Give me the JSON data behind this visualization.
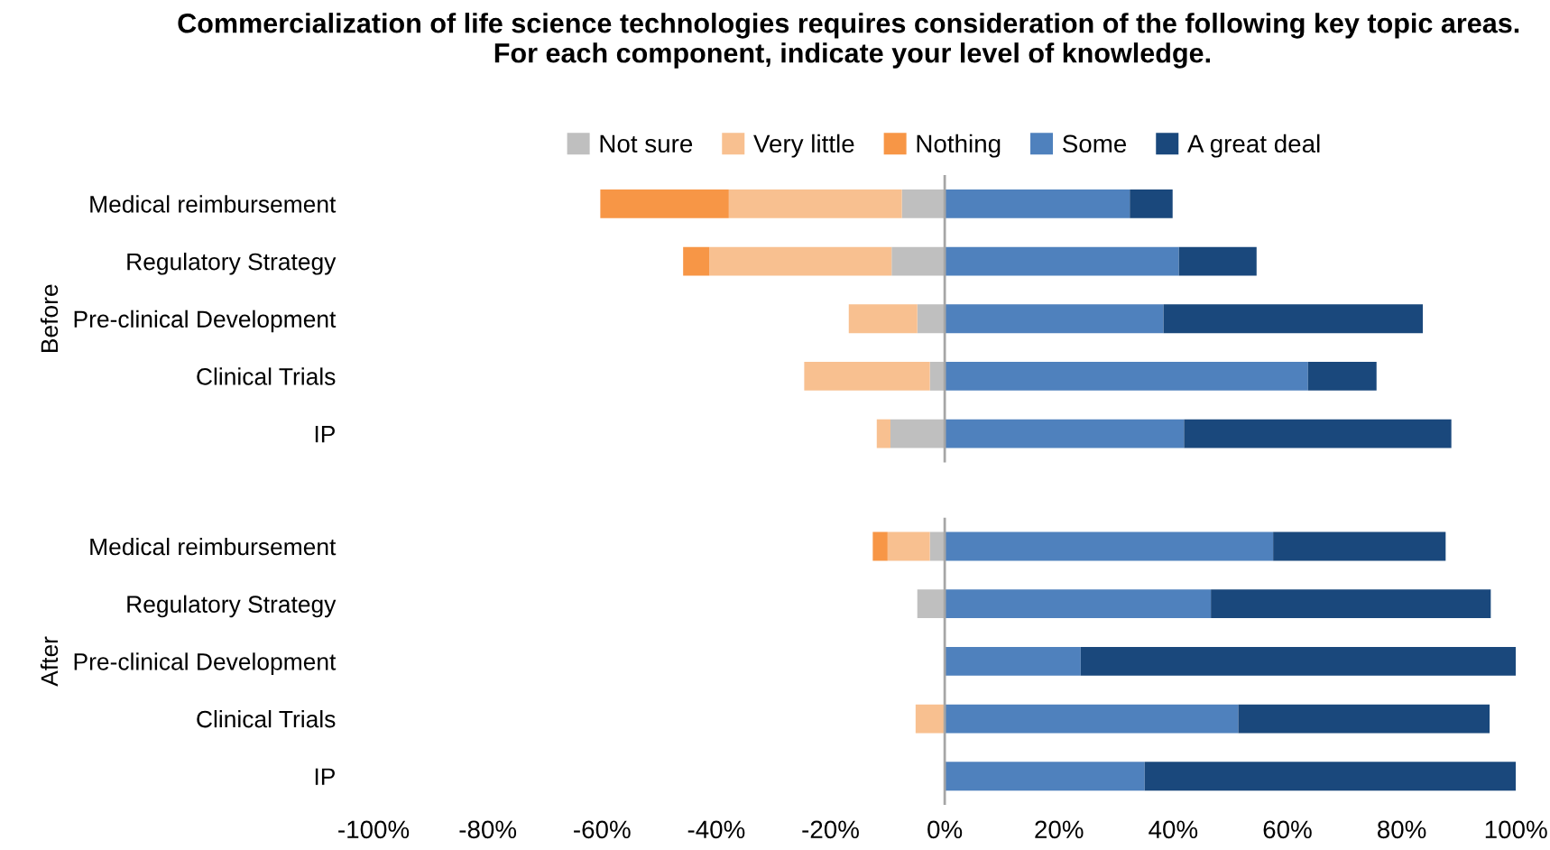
{
  "chart_data": [
    {
      "type": "bar",
      "orientation": "horizontal",
      "stacked": true,
      "title": "Commercialization of life science technologies requires consideration of the following key topic areas.  For each component, indicate your level of knowledge.",
      "ylabel": "Before",
      "categories": [
        "Medical reimbursement",
        "Regulatory Strategy",
        "Pre-clinical Development",
        "Clinical Trials",
        "IP"
      ],
      "legend": "top",
      "grid": false,
      "tick_labels": "y",
      "xlim": [
        -1.0,
        1.0
      ],
      "ref_lines": [
        {
          "axis": "x",
          "value": 0,
          "color": "#a6a6a6"
        }
      ],
      "series": [
        {
          "name": "Not sure",
          "color": "#bfbfbf",
          "values": [
            -0.075,
            -0.093,
            -0.048,
            -0.026,
            -0.095
          ]
        },
        {
          "name": "Very little",
          "color": "#f8c090",
          "values": [
            -0.303,
            -0.319,
            -0.12,
            -0.22,
            -0.024
          ]
        },
        {
          "name": "Nothing",
          "color": "#f79646",
          "values": [
            -0.225,
            -0.046,
            null,
            null,
            null
          ]
        },
        {
          "name": "Some",
          "color": "#4f81bd",
          "values": [
            0.324,
            0.41,
            0.383,
            0.636,
            0.419
          ]
        },
        {
          "name": "A great deal",
          "color": "#1a487c",
          "values": [
            0.075,
            0.136,
            0.454,
            0.12,
            0.468
          ]
        }
      ]
    },
    {
      "type": "bar",
      "orientation": "horizontal",
      "stacked": true,
      "ylabel": "After",
      "categories": [
        "Medical reimbursement",
        "Regulatory Strategy",
        "Pre-clinical Development",
        "Clinical Trials",
        "IP"
      ],
      "legend": false,
      "grid": false,
      "xlim": [
        -1.0,
        1.0
      ],
      "ref_lines": [
        {
          "axis": "x",
          "value": 0,
          "color": "#a6a6a6"
        }
      ],
      "xticks": [
        {
          "value": -1.0,
          "label": "-100%"
        },
        {
          "value": -0.8,
          "label": "-80%"
        },
        {
          "value": -0.6,
          "label": "-60%"
        },
        {
          "value": -0.4,
          "label": "-40%"
        },
        {
          "value": -0.2,
          "label": "-20%"
        },
        {
          "value": 0,
          "label": "0%"
        },
        {
          "value": 0.2,
          "label": "20%"
        },
        {
          "value": 0.4,
          "label": "40%"
        },
        {
          "value": 0.6,
          "label": "60%"
        },
        {
          "value": 0.8,
          "label": "80%"
        },
        {
          "value": 1.0,
          "label": "100%"
        }
      ],
      "series": [
        {
          "color": "#bfbfbf",
          "values": [
            -0.026,
            -0.048,
            null,
            null,
            null
          ]
        },
        {
          "color": "#f8c090",
          "values": [
            -0.074,
            null,
            null,
            -0.051,
            null
          ]
        },
        {
          "color": "#f79646",
          "values": [
            -0.026,
            null,
            null,
            null,
            null
          ]
        },
        {
          "color": "#4f81bd",
          "values": [
            0.575,
            0.466,
            0.238,
            0.514,
            0.35
          ]
        },
        {
          "color": "#1a487c",
          "values": [
            0.302,
            0.49,
            0.762,
            0.44,
            0.65
          ]
        }
      ]
    }
  ]
}
